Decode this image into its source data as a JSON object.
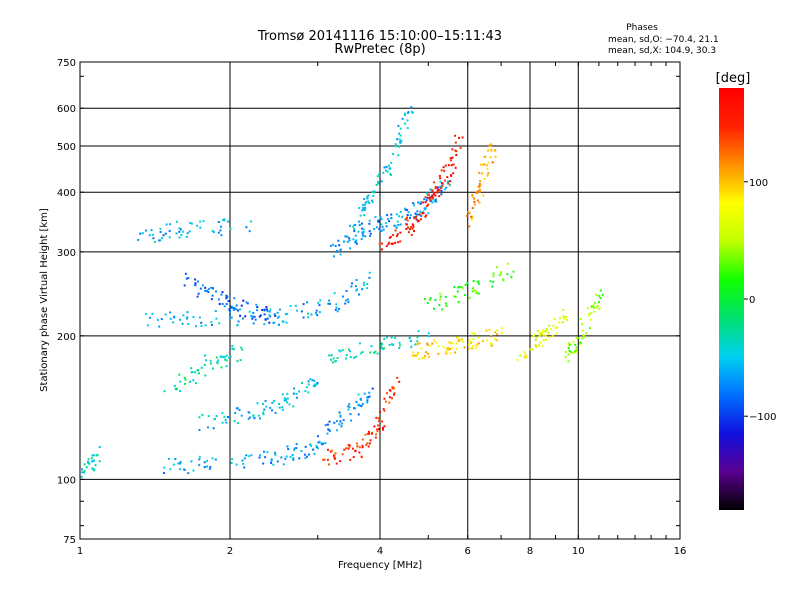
{
  "chart_data": {
    "type": "scatter",
    "title": "Tromsø 20141116 15:10:00–15:11:43",
    "subtitle": "RwPretec (8p)",
    "xlabel": "Frequency [MHz]",
    "ylabel": "Stationary phase Virtual Height [km]",
    "x_scale": "log",
    "y_scale": "log",
    "xlim": [
      1,
      16
    ],
    "ylim": [
      75,
      750
    ],
    "x_ticks": [
      1,
      2,
      4,
      6,
      8,
      10,
      16
    ],
    "x_tick_labels": [
      "1",
      "2",
      "4",
      "6",
      "8",
      "10",
      "16"
    ],
    "y_ticks": [
      75,
      100,
      200,
      300,
      400,
      500,
      600,
      750
    ],
    "y_tick_labels": [
      "75",
      "100",
      "200",
      "300",
      "400",
      "500",
      "600",
      "750"
    ],
    "x_gridlines": [
      2,
      4,
      6,
      8,
      10
    ],
    "y_gridlines": [
      100,
      200,
      300,
      400,
      500,
      600
    ],
    "grid": true,
    "stats": {
      "heading": "Phases",
      "line_o": "mean, sd,O: −70.4, 21.1",
      "line_x": "mean, sd,X: 104.9, 30.3"
    },
    "colorbar": {
      "label": "[deg]",
      "range": [
        -180,
        180
      ],
      "ticks": [
        100,
        0,
        -100
      ],
      "tick_labels": [
        "100",
        "0",
        "−100"
      ],
      "stops": [
        "#000000",
        "#5a0090",
        "#1010e0",
        "#0070ff",
        "#00d0f0",
        "#00e070",
        "#10ff00",
        "#c0ff00",
        "#ffff00",
        "#ff9000",
        "#ff2000",
        "#ff0000"
      ]
    },
    "traces": [
      {
        "x": [
          1.0,
          1.1
        ],
        "y": [
          100,
          115
        ],
        "phase": -40
      },
      {
        "x": [
          1.45,
          2.0,
          2.6,
          3.0
        ],
        "y": [
          106,
          109,
          112,
          118
        ],
        "phase": -65
      },
      {
        "x": [
          3.0,
          3.4,
          3.8
        ],
        "y": [
          118,
          135,
          150
        ],
        "phase": -75
      },
      {
        "x": [
          3.1,
          3.6,
          4.0,
          4.3
        ],
        "y": [
          110,
          115,
          130,
          160
        ],
        "phase": 150
      },
      {
        "x": [
          1.35,
          1.8,
          2.5,
          3.2,
          3.8
        ],
        "y": [
          215,
          218,
          220,
          232,
          262
        ],
        "phase": -60
      },
      {
        "x": [
          1.6,
          1.9,
          2.2,
          2.5
        ],
        "y": [
          262,
          240,
          225,
          218
        ],
        "phase": -85
      },
      {
        "x": [
          1.3,
          1.6,
          2.2
        ],
        "y": [
          320,
          335,
          340
        ],
        "phase": -60
      },
      {
        "x": [
          3.2,
          3.6,
          4.1,
          4.6,
          5.0,
          5.5
        ],
        "y": [
          300,
          330,
          345,
          360,
          380,
          420
        ],
        "phase": -70
      },
      {
        "x": [
          3.5,
          3.8,
          4.2,
          4.6
        ],
        "y": [
          330,
          380,
          460,
          600
        ],
        "phase": -50
      },
      {
        "x": [
          4.0,
          4.6,
          5.0,
          5.4,
          5.8
        ],
        "y": [
          300,
          340,
          380,
          430,
          520
        ],
        "phase": 160
      },
      {
        "x": [
          3.1,
          4.0,
          5.0
        ],
        "y": [
          180,
          190,
          200
        ],
        "phase": -35
      },
      {
        "x": [
          1.7,
          2.2,
          2.6,
          3.0
        ],
        "y": [
          130,
          138,
          145,
          160
        ],
        "phase": -55
      },
      {
        "x": [
          4.6,
          5.4,
          6.2,
          7.0
        ],
        "y": [
          185,
          190,
          195,
          200
        ],
        "phase": 90
      },
      {
        "x": [
          6.0,
          6.4,
          6.8
        ],
        "y": [
          350,
          420,
          520
        ],
        "phase": 110
      },
      {
        "x": [
          7.5,
          8.5,
          9.5
        ],
        "y": [
          180,
          200,
          220
        ],
        "phase": 70
      },
      {
        "x": [
          9.5,
          10.2,
          11.2
        ],
        "y": [
          180,
          205,
          250
        ],
        "phase": 40
      },
      {
        "x": [
          5.0,
          6.0,
          7.5
        ],
        "y": [
          230,
          250,
          280
        ],
        "phase": 20
      },
      {
        "x": [
          1.5,
          1.8,
          2.1
        ],
        "y": [
          150,
          175,
          185
        ],
        "phase": -30
      }
    ]
  }
}
